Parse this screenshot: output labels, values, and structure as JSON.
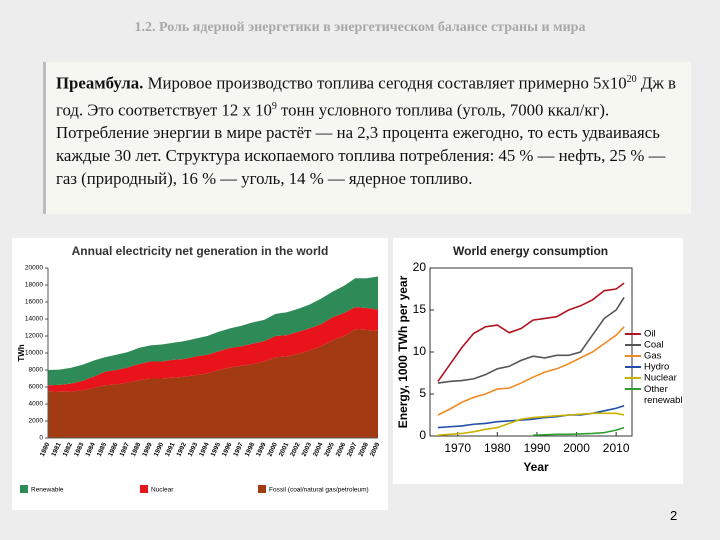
{
  "header": {
    "title": "1.2. Роль ядерной энергетики в энергетическом балансе страны и мира"
  },
  "preamble": {
    "lead": "Преамбула.",
    "body": [
      "Мировое производство топлива сегодня составляет примерно 5х10",
      "20",
      " Дж в год. Это соответствует 12 х 10",
      "9",
      " тонн условного топлива (уголь, 7000 ккал/кг). Потребление энергии в мире  растёт — на 2,3 процента ежегодно, то есть удваиваясь каждые 30 лет. Структура ископаемого топлива потребления: 45 % — нефть, 25 % — газ (природный), 16 % — уголь, 14 % — ядерное топливо."
    ]
  },
  "chart_data": [
    {
      "type": "stacked-area",
      "title": "Annual electricity net generation in the world",
      "ylabel": "TWh",
      "categories": [
        "1980",
        "1981",
        "1982",
        "1983",
        "1984",
        "1985",
        "1986",
        "1987",
        "1988",
        "1989",
        "1990",
        "1991",
        "1992",
        "1993",
        "1994",
        "1995",
        "1996",
        "1997",
        "1998",
        "1999",
        "2000",
        "2001",
        "2002",
        "2003",
        "2004",
        "2005",
        "2006",
        "2007",
        "2008",
        "2009"
      ],
      "series": [
        {
          "name": "Fossil (coal/natural gas/petroleum)",
          "color": "#a23b12",
          "values": [
            5500,
            5450,
            5450,
            5600,
            5900,
            6200,
            6300,
            6500,
            6800,
            7000,
            7000,
            7100,
            7200,
            7400,
            7600,
            8000,
            8300,
            8500,
            8700,
            9000,
            9500,
            9600,
            9900,
            10300,
            10800,
            11500,
            12000,
            12800,
            12700,
            12600
          ]
        },
        {
          "name": "Nuclear",
          "color": "#e8131b",
          "values": [
            700,
            800,
            950,
            1100,
            1300,
            1600,
            1700,
            1800,
            1900,
            2000,
            2000,
            2100,
            2100,
            2200,
            2200,
            2200,
            2300,
            2300,
            2400,
            2400,
            2500,
            2500,
            2600,
            2600,
            2600,
            2700,
            2700,
            2600,
            2600,
            2500
          ]
        },
        {
          "name": "Renewable",
          "color": "#2e8b57",
          "values": [
            1800,
            1800,
            1850,
            1900,
            1900,
            1700,
            1800,
            1800,
            1900,
            1900,
            2000,
            2000,
            2100,
            2100,
            2200,
            2300,
            2300,
            2400,
            2500,
            2500,
            2600,
            2700,
            2700,
            2800,
            3000,
            3000,
            3200,
            3400,
            3500,
            3900
          ]
        }
      ],
      "ylim": [
        0,
        20000
      ],
      "yticks": [
        0,
        2000,
        4000,
        6000,
        8000,
        10000,
        12000,
        14000,
        16000,
        18000,
        20000
      ]
    },
    {
      "type": "line",
      "title": "World energy consumption",
      "xlabel": "Year",
      "ylabel": "Energy, 1000 TWh per year",
      "x": [
        1965,
        1968,
        1971,
        1974,
        1977,
        1980,
        1983,
        1986,
        1989,
        1992,
        1995,
        1998,
        2001,
        2004,
        2007,
        2010,
        2012
      ],
      "series": [
        {
          "name": "Oil",
          "color": "#b0141f",
          "values": [
            6.5,
            8.5,
            10.5,
            12.2,
            13.0,
            13.2,
            12.3,
            12.8,
            13.8,
            14.0,
            14.2,
            15.0,
            15.5,
            16.2,
            17.3,
            17.5,
            18.2
          ]
        },
        {
          "name": "Coal",
          "color": "#555555",
          "values": [
            6.3,
            6.5,
            6.6,
            6.8,
            7.3,
            8.0,
            8.3,
            9.0,
            9.5,
            9.3,
            9.6,
            9.6,
            10.0,
            12.0,
            14.0,
            15.0,
            16.5
          ]
        },
        {
          "name": "Gas",
          "color": "#f08a24",
          "values": [
            2.5,
            3.2,
            4.0,
            4.6,
            5.0,
            5.6,
            5.7,
            6.3,
            7.0,
            7.6,
            8.0,
            8.6,
            9.3,
            10.0,
            11.0,
            12.0,
            13.0
          ]
        },
        {
          "name": "Hydro",
          "color": "#1f4fa8",
          "values": [
            1.0,
            1.1,
            1.2,
            1.4,
            1.5,
            1.7,
            1.8,
            1.9,
            2.0,
            2.2,
            2.3,
            2.5,
            2.5,
            2.7,
            3.0,
            3.3,
            3.6
          ]
        },
        {
          "name": "Nuclear",
          "color": "#c8b400",
          "values": [
            0.1,
            0.2,
            0.3,
            0.5,
            0.8,
            1.0,
            1.5,
            2.0,
            2.2,
            2.3,
            2.4,
            2.5,
            2.6,
            2.7,
            2.7,
            2.7,
            2.5
          ]
        },
        {
          "name": "Other renewable",
          "color": "#2ca02c",
          "values": [
            null,
            null,
            null,
            null,
            null,
            null,
            null,
            null,
            0.1,
            0.15,
            0.2,
            0.2,
            0.25,
            0.3,
            0.4,
            0.7,
            1.0
          ]
        }
      ],
      "xlim": [
        1963,
        2014
      ],
      "xticks": [
        1970,
        1980,
        1990,
        2000,
        2010
      ],
      "ylim": [
        0,
        20
      ],
      "yticks": [
        0,
        5,
        10,
        15,
        20
      ]
    }
  ],
  "page_number": "2"
}
